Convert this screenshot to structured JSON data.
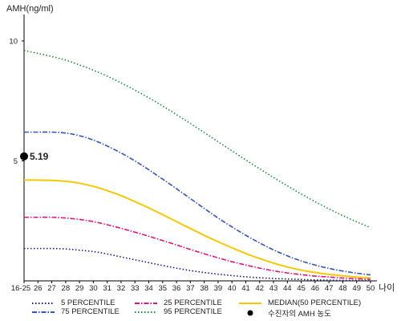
{
  "chart_data": {
    "type": "line",
    "title": "",
    "ylabel": "AMH(ng/ml)",
    "xlabel": "나이",
    "x": [
      "16-25",
      "26",
      "27",
      "28",
      "29",
      "30",
      "31",
      "32",
      "33",
      "34",
      "35",
      "36",
      "37",
      "38",
      "39",
      "40",
      "41",
      "42",
      "43",
      "44",
      "45",
      "46",
      "47",
      "48",
      "49",
      "50"
    ],
    "ylim": [
      0,
      11
    ],
    "yticks": [
      5,
      10
    ],
    "grid": false,
    "legend_position": "bottom",
    "series": [
      {
        "name": "5 PERCENTILE",
        "color": "#1a1a8c",
        "dash": "dotted",
        "values": [
          1.35,
          1.35,
          1.35,
          1.33,
          1.28,
          1.22,
          1.12,
          1.0,
          0.88,
          0.76,
          0.64,
          0.53,
          0.43,
          0.35,
          0.28,
          0.22,
          0.17,
          0.13,
          0.1,
          0.08,
          0.06,
          0.04,
          0.03,
          0.02,
          0.02,
          0.01
        ]
      },
      {
        "name": "25 PERCENTILE",
        "color": "#e0147a",
        "dash": "dashdot",
        "values": [
          2.65,
          2.65,
          2.65,
          2.62,
          2.56,
          2.47,
          2.34,
          2.19,
          2.03,
          1.86,
          1.68,
          1.5,
          1.31,
          1.13,
          0.96,
          0.8,
          0.66,
          0.53,
          0.42,
          0.33,
          0.26,
          0.2,
          0.16,
          0.12,
          0.09,
          0.07
        ]
      },
      {
        "name": "MEDIAN(50 PERCENTILE)",
        "color": "#f5c800",
        "dash": "solid",
        "values": [
          4.2,
          4.2,
          4.19,
          4.15,
          4.07,
          3.94,
          3.76,
          3.55,
          3.3,
          3.04,
          2.76,
          2.47,
          2.18,
          1.9,
          1.63,
          1.38,
          1.14,
          0.93,
          0.74,
          0.58,
          0.45,
          0.35,
          0.27,
          0.21,
          0.16,
          0.13
        ]
      },
      {
        "name": "75 PERCENTILE",
        "color": "#3355bb",
        "dash": "dashdot",
        "values": [
          6.2,
          6.2,
          6.2,
          6.16,
          6.05,
          5.87,
          5.62,
          5.33,
          5.0,
          4.63,
          4.24,
          3.84,
          3.43,
          3.02,
          2.62,
          2.25,
          1.9,
          1.58,
          1.29,
          1.04,
          0.83,
          0.66,
          0.52,
          0.41,
          0.32,
          0.25
        ]
      },
      {
        "name": "95 PERCENTILE",
        "color": "#1e8a3a",
        "dash": "dotted",
        "values": [
          9.6,
          9.48,
          9.35,
          9.2,
          9.0,
          8.78,
          8.53,
          8.25,
          7.95,
          7.63,
          7.29,
          6.93,
          6.56,
          6.18,
          5.8,
          5.42,
          5.04,
          4.67,
          4.31,
          3.96,
          3.62,
          3.3,
          3.0,
          2.72,
          2.46,
          2.22
        ]
      }
    ],
    "points": [
      {
        "name": "수진자의 AMH 농도",
        "x": "16-25",
        "y": 5.19,
        "label": "5.19",
        "color": "#000000"
      }
    ]
  },
  "legend": {
    "items": [
      {
        "label": "5 PERCENTILE",
        "color": "#1a1a8c",
        "dash": "dotted"
      },
      {
        "label": "25 PERCENTILE",
        "color": "#e0147a",
        "dash": "dashdot"
      },
      {
        "label": "MEDIAN(50 PERCENTILE)",
        "color": "#f5c800",
        "dash": "solid"
      },
      {
        "label": "75 PERCENTILE",
        "color": "#3355bb",
        "dash": "dashdot"
      },
      {
        "label": "95 PERCENTILE",
        "color": "#1e8a3a",
        "dash": "dotted"
      },
      {
        "label": "수진자의 AMH 농도",
        "color": "#000000",
        "dash": "marker"
      }
    ]
  }
}
